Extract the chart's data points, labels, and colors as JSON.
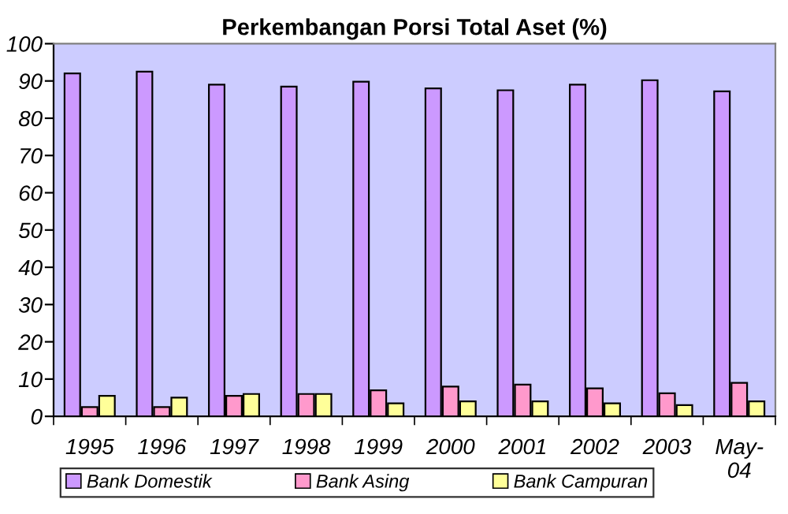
{
  "chart_data": {
    "type": "bar",
    "title": "Perkembangan Porsi Total Aset (%)",
    "categories": [
      "1995",
      "1996",
      "1997",
      "1998",
      "1999",
      "2000",
      "2001",
      "2002",
      "2003",
      "May-\n04"
    ],
    "series": [
      {
        "name": "Bank Domestik",
        "color": "#cc99ff",
        "values": [
          92,
          92.5,
          89,
          88.5,
          89.8,
          88,
          87.5,
          89,
          90.2,
          87.2
        ]
      },
      {
        "name": "Bank Asing",
        "color": "#ff99cc",
        "values": [
          2.5,
          2.5,
          5.5,
          6,
          7,
          8,
          8.5,
          7.5,
          6.2,
          9
        ]
      },
      {
        "name": "Bank Campuran",
        "color": "#ffff99",
        "values": [
          5.5,
          5,
          6,
          6,
          3.5,
          4,
          4,
          3.5,
          3,
          4
        ]
      }
    ],
    "ylim": [
      0,
      100
    ],
    "yticks": [
      0,
      10,
      20,
      30,
      40,
      50,
      60,
      70,
      80,
      90,
      100
    ],
    "grid": false,
    "legend": "bottom"
  }
}
